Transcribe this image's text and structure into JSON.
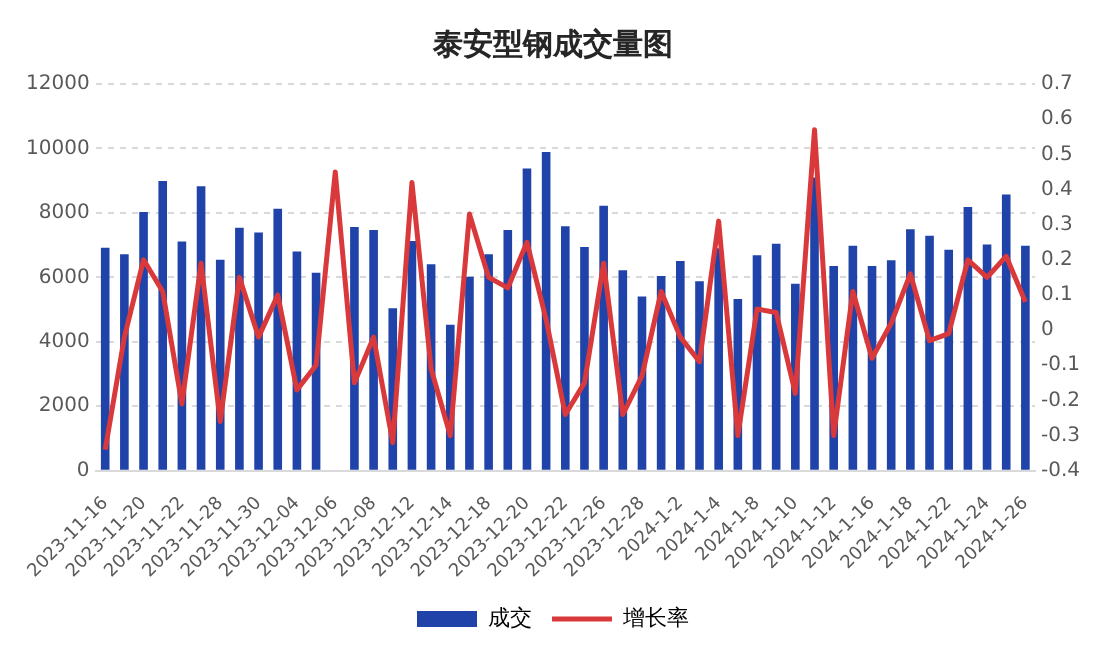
{
  "chart_data": {
    "type": "bar",
    "title": "泰安型钢成交量图",
    "categories": [
      "2023-11-16",
      null,
      "2023-11-20",
      null,
      "2023-11-22",
      null,
      "2023-11-28",
      null,
      "2023-11-30",
      null,
      "2023-12-04",
      null,
      "2023-12-06",
      null,
      "2023-12-08",
      null,
      "2023-12-12",
      null,
      "2023-12-14",
      null,
      "2023-12-18",
      null,
      "2023-12-20",
      null,
      "2023-12-22",
      null,
      "2023-12-26",
      null,
      "2023-12-28",
      null,
      "2024-1-2",
      null,
      "2024-1-4",
      null,
      "2024-1-8",
      null,
      "2024-1-10",
      null,
      "2024-1-12",
      null,
      "2024-1-16",
      null,
      "2024-1-18",
      null,
      "2024-1-22",
      null,
      "2024-1-24",
      null,
      "2024-1-26"
    ],
    "series": [
      {
        "name": "成交",
        "color": "#1f43a8",
        "values": [
          6920,
          6720,
          8030,
          8990,
          7110,
          8830,
          6550,
          7540,
          7390,
          8130,
          6800,
          6140,
          null,
          7560,
          7470,
          5040,
          7130,
          6410,
          4530,
          6020,
          6720,
          7470,
          9380,
          9890,
          7590,
          6940,
          8220,
          6220,
          5410,
          6040,
          6510,
          5880,
          6900,
          5330,
          6690,
          7040,
          5800,
          9100,
          6350,
          6980,
          6350,
          6530,
          7490,
          7290,
          6860,
          8180,
          7020,
          8570,
          6980
        ]
      },
      {
        "name": "增长率",
        "type": "line",
        "axis": "y2",
        "color": "#d9393b",
        "values": [
          -0.34,
          -0.02,
          0.2,
          0.11,
          -0.21,
          0.19,
          -0.26,
          0.15,
          -0.02,
          0.1,
          -0.17,
          -0.1,
          0.45,
          -0.15,
          -0.02,
          -0.32,
          0.42,
          -0.11,
          -0.3,
          0.33,
          0.15,
          0.12,
          0.25,
          0.03,
          -0.24,
          -0.15,
          0.19,
          -0.24,
          -0.13,
          0.11,
          -0.02,
          -0.09,
          0.31,
          -0.3,
          0.06,
          0.05,
          -0.18,
          0.57,
          -0.3,
          0.11,
          -0.08,
          0.02,
          0.16,
          -0.03,
          -0.01,
          0.2,
          0.15,
          0.21,
          0.08
        ]
      }
    ],
    "ylim": [
      0,
      12000
    ],
    "yticks": [
      0,
      2000,
      4000,
      6000,
      8000,
      10000,
      12000
    ],
    "y2lim": [
      -0.4,
      0.7
    ],
    "y2ticks": [
      -0.4,
      -0.3,
      -0.2,
      -0.1,
      0,
      0.1,
      0.2,
      0.3,
      0.4,
      0.5,
      0.6,
      0.7
    ],
    "grid": "y",
    "legend": "bottom",
    "marker": "none",
    "line_style": "solid"
  }
}
